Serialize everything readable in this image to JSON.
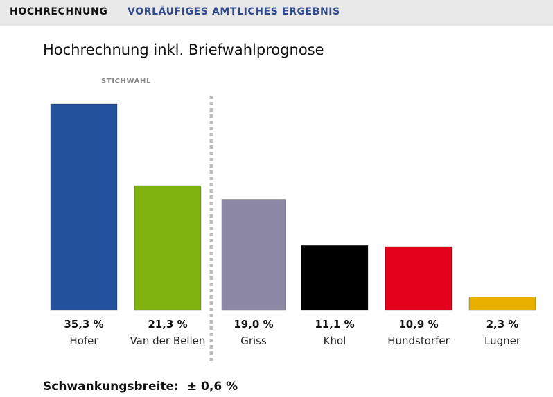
{
  "tabs": [
    {
      "label": "HOCHRECHNUNG",
      "active": true
    },
    {
      "label": "VORLÄUFIGES AMTLICHES ERGEBNIS",
      "active": false
    }
  ],
  "chart_data": {
    "type": "bar",
    "title": "Hochrechnung inkl. Briefwahlprognose",
    "annotation": "STICHWAHL",
    "categories": [
      "Hofer",
      "Van der Bellen",
      "Griss",
      "Khol",
      "Hundstorfer",
      "Lugner"
    ],
    "values": [
      35.3,
      21.3,
      19.0,
      11.1,
      10.9,
      2.3
    ],
    "value_labels": [
      "35,3 %",
      "21,3 %",
      "19,0 %",
      "11,1 %",
      "10,9 %",
      "2,3 %"
    ],
    "colors": [
      "#24519e",
      "#80b20f",
      "#8c88a6",
      "#000000",
      "#e2001a",
      "#e8b100"
    ],
    "stichwahl_after": 2,
    "ylim": [
      0,
      35.3
    ],
    "grid": false
  },
  "footer": {
    "label": "Schwankungsbreite:",
    "value": "± 0,6 %"
  }
}
